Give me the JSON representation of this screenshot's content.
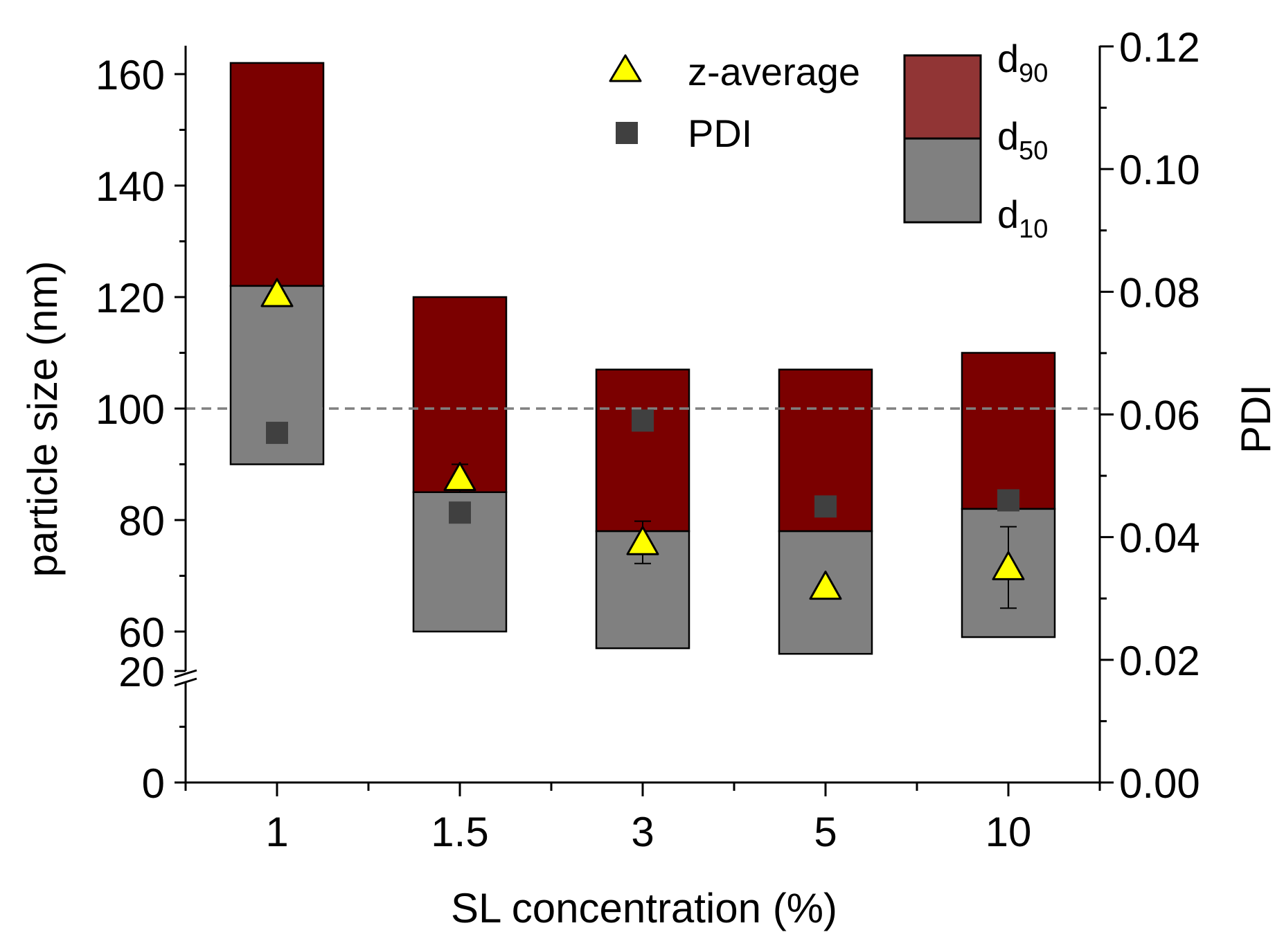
{
  "chart_data": {
    "type": "bar",
    "subtype": "floating-bar with scatter overlay and dual y-axis",
    "xlabel": "SL concentration (%)",
    "ylabel_left": "particle size (nm)",
    "ylabel_right": "PDI",
    "categories": [
      "1",
      "1.5",
      "3",
      "5",
      "10"
    ],
    "left_axis": {
      "broken": true,
      "lower_range": [
        0,
        20
      ],
      "upper_range": [
        60,
        160
      ],
      "ticks": [
        "0",
        "20",
        "60",
        "80",
        "100",
        "120",
        "140",
        "160"
      ]
    },
    "right_axis": {
      "range": [
        0,
        0.12
      ],
      "ticks": [
        "0.00",
        "0.02",
        "0.04",
        "0.06",
        "0.08",
        "0.10",
        "0.12"
      ]
    },
    "reference_line": {
      "y": 100,
      "style": "dashed"
    },
    "series": [
      {
        "name": "d10",
        "values": [
          90,
          60,
          57,
          56,
          59
        ]
      },
      {
        "name": "d50",
        "values": [
          122,
          85,
          78,
          78,
          82
        ]
      },
      {
        "name": "d90",
        "values": [
          162,
          120,
          107,
          107,
          110
        ]
      },
      {
        "name": "z-average",
        "values": [
          120.5,
          87.5,
          76,
          68,
          71.5
        ],
        "errors": [
          0,
          2.5,
          3.8,
          0,
          7.3
        ]
      },
      {
        "name": "PDI",
        "axis": "right",
        "values": [
          0.057,
          0.044,
          0.059,
          0.045,
          0.046
        ]
      }
    ],
    "legend": {
      "z_label": "z-average",
      "pdi_label": "PDI",
      "d90_main": "d",
      "d90_sub": "90",
      "d50_main": "d",
      "d50_sub": "50",
      "d10_main": "d",
      "d10_sub": "10"
    },
    "colors": {
      "d90_bar": "#7b0000",
      "d50_bar": "#808080",
      "legend_d90": "#913535",
      "legend_d50": "#808080",
      "triangle": "#ffff00",
      "pdi_marker": "#404040",
      "reference_line": "#808080"
    }
  }
}
